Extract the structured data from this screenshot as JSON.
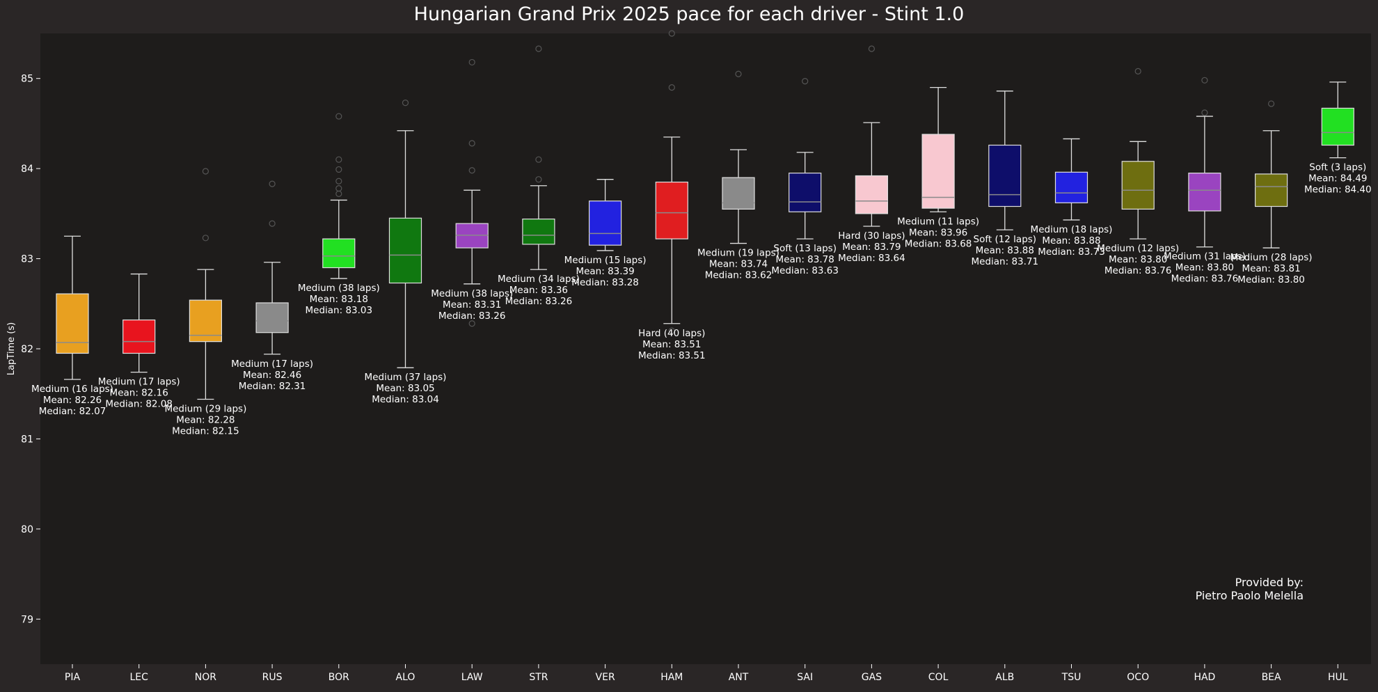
{
  "chart_data": {
    "type": "box",
    "title": "Hungarian Grand Prix 2025 pace for each driver - Stint 1.0",
    "ylabel": "LapTime (s)",
    "xlabel": "",
    "ylim": [
      78.5,
      85.5
    ],
    "yticks": [
      "79",
      "80",
      "81",
      "82",
      "83",
      "84",
      "85"
    ],
    "grid": false,
    "colors": {
      "background": "#2a2626",
      "plot_area": "#1e1c1b",
      "text": "#ffffff",
      "whisker": "#e0e0e0",
      "median": "#8a8a8a",
      "outlier": "#555555"
    },
    "credit": [
      "Provided by:",
      "Pietro Paolo Melella"
    ],
    "drivers": [
      {
        "name": "PIA",
        "color": "#e8a020",
        "q1": 81.95,
        "median": 82.07,
        "q3": 82.61,
        "whislo": 81.66,
        "whishi": 83.25,
        "outliers": [],
        "label": [
          "Medium (16 laps)",
          "Mean: 82.26",
          "Median: 82.07"
        ]
      },
      {
        "name": "LEC",
        "color": "#e8141e",
        "q1": 81.95,
        "median": 82.08,
        "q3": 82.32,
        "whislo": 81.74,
        "whishi": 82.83,
        "outliers": [],
        "label": [
          "Medium (17 laps)",
          "Mean: 82.16",
          "Median: 82.08"
        ]
      },
      {
        "name": "NOR",
        "color": "#e8a020",
        "q1": 82.08,
        "median": 82.15,
        "q3": 82.54,
        "whislo": 81.44,
        "whishi": 82.88,
        "outliers": [
          83.23,
          83.97
        ],
        "label": [
          "Medium (29 laps)",
          "Mean: 82.28",
          "Median: 82.15"
        ]
      },
      {
        "name": "RUS",
        "color": "#8a8a8a",
        "q1": 82.18,
        "median": 82.31,
        "q3": 82.51,
        "whislo": 81.94,
        "whishi": 82.96,
        "outliers": [
          83.39,
          83.83
        ],
        "label": [
          "Medium (17 laps)",
          "Mean: 82.46",
          "Median: 82.31"
        ]
      },
      {
        "name": "BOR",
        "color": "#22e022",
        "q1": 82.9,
        "median": 83.03,
        "q3": 83.22,
        "whislo": 82.78,
        "whishi": 83.65,
        "outliers": [
          83.72,
          83.78,
          83.86,
          83.99,
          84.1,
          84.58
        ],
        "label": [
          "Medium (38 laps)",
          "Mean: 83.18",
          "Median: 83.03"
        ]
      },
      {
        "name": "ALO",
        "color": "#107810",
        "q1": 82.73,
        "median": 83.04,
        "q3": 83.45,
        "whislo": 81.79,
        "whishi": 84.42,
        "outliers": [
          84.73
        ],
        "label": [
          "Medium (37 laps)",
          "Mean: 83.05",
          "Median: 83.04"
        ]
      },
      {
        "name": "LAW",
        "color": "#9a44c0",
        "q1": 83.12,
        "median": 83.26,
        "q3": 83.39,
        "whislo": 82.72,
        "whishi": 83.76,
        "outliers": [
          82.28,
          83.98,
          84.28,
          85.18
        ],
        "label": [
          "Medium (38 laps)",
          "Mean: 83.31",
          "Median: 83.26"
        ]
      },
      {
        "name": "STR",
        "color": "#107810",
        "q1": 83.16,
        "median": 83.26,
        "q3": 83.44,
        "whislo": 82.88,
        "whishi": 83.81,
        "outliers": [
          83.88,
          84.1,
          85.33
        ],
        "label": [
          "Medium (34 laps)",
          "Mean: 83.36",
          "Median: 83.26"
        ]
      },
      {
        "name": "VER",
        "color": "#2222e0",
        "q1": 83.15,
        "median": 83.28,
        "q3": 83.64,
        "whislo": 83.09,
        "whishi": 83.88,
        "outliers": [],
        "label": [
          "Medium (15 laps)",
          "Mean: 83.39",
          "Median: 83.28"
        ]
      },
      {
        "name": "HAM",
        "color": "#e01e20",
        "q1": 83.22,
        "median": 83.51,
        "q3": 83.85,
        "whislo": 82.28,
        "whishi": 84.35,
        "outliers": [
          82.2,
          84.9,
          85.5
        ],
        "label": [
          "Hard (40 laps)",
          "Mean: 83.51",
          "Median: 83.51"
        ]
      },
      {
        "name": "ANT",
        "color": "#8a8a8a",
        "q1": 83.55,
        "median": 83.62,
        "q3": 83.9,
        "whislo": 83.17,
        "whishi": 84.21,
        "outliers": [
          85.05
        ],
        "label": [
          "Medium (19 laps)",
          "Mean: 83.74",
          "Median: 83.62"
        ]
      },
      {
        "name": "SAI",
        "color": "#0e0e6a",
        "q1": 83.52,
        "median": 83.63,
        "q3": 83.95,
        "whislo": 83.22,
        "whishi": 84.18,
        "outliers": [
          84.97
        ],
        "label": [
          "Soft (13 laps)",
          "Mean: 83.78",
          "Median: 83.63"
        ]
      },
      {
        "name": "GAS",
        "color": "#f8c8d0",
        "q1": 83.5,
        "median": 83.64,
        "q3": 83.92,
        "whislo": 83.36,
        "whishi": 84.51,
        "outliers": [
          85.33
        ],
        "label": [
          "Hard (30 laps)",
          "Mean: 83.79",
          "Median: 83.64"
        ]
      },
      {
        "name": "COL",
        "color": "#f8c8d0",
        "q1": 83.56,
        "median": 83.68,
        "q3": 84.38,
        "whislo": 83.52,
        "whishi": 84.9,
        "outliers": [],
        "label": [
          "Medium (11 laps)",
          "Mean: 83.96",
          "Median: 83.68"
        ]
      },
      {
        "name": "ALB",
        "color": "#0e0e6a",
        "q1": 83.58,
        "median": 83.71,
        "q3": 84.26,
        "whislo": 83.32,
        "whishi": 84.86,
        "outliers": [],
        "label": [
          "Soft (12 laps)",
          "Mean: 83.88",
          "Median: 83.71"
        ]
      },
      {
        "name": "TSU",
        "color": "#2222e0",
        "q1": 83.62,
        "median": 83.73,
        "q3": 83.96,
        "whislo": 83.43,
        "whishi": 84.33,
        "outliers": [],
        "label": [
          "Medium (18 laps)",
          "Mean: 83.88",
          "Median: 83.73"
        ]
      },
      {
        "name": "OCO",
        "color": "#6e6e10",
        "q1": 83.55,
        "median": 83.76,
        "q3": 84.08,
        "whislo": 83.22,
        "whishi": 84.3,
        "outliers": [
          85.08
        ],
        "label": [
          "Medium (12 laps)",
          "Mean: 83.80",
          "Median: 83.76"
        ]
      },
      {
        "name": "HAD",
        "color": "#9a44c0",
        "q1": 83.53,
        "median": 83.76,
        "q3": 83.95,
        "whislo": 83.13,
        "whishi": 84.58,
        "outliers": [
          84.62,
          84.98
        ],
        "label": [
          "Medium (31 laps)",
          "Mean: 83.80",
          "Median: 83.76"
        ]
      },
      {
        "name": "BEA",
        "color": "#6e6e10",
        "q1": 83.58,
        "median": 83.8,
        "q3": 83.94,
        "whislo": 83.12,
        "whishi": 84.42,
        "outliers": [
          84.72
        ],
        "label": [
          "Medium (28 laps)",
          "Mean: 83.81",
          "Median: 83.80"
        ]
      },
      {
        "name": "HUL",
        "color": "#22e022",
        "q1": 84.26,
        "median": 84.4,
        "q3": 84.67,
        "whislo": 84.12,
        "whishi": 84.96,
        "outliers": [],
        "label": [
          "Soft (3 laps)",
          "Mean: 84.49",
          "Median: 84.40"
        ]
      }
    ]
  }
}
